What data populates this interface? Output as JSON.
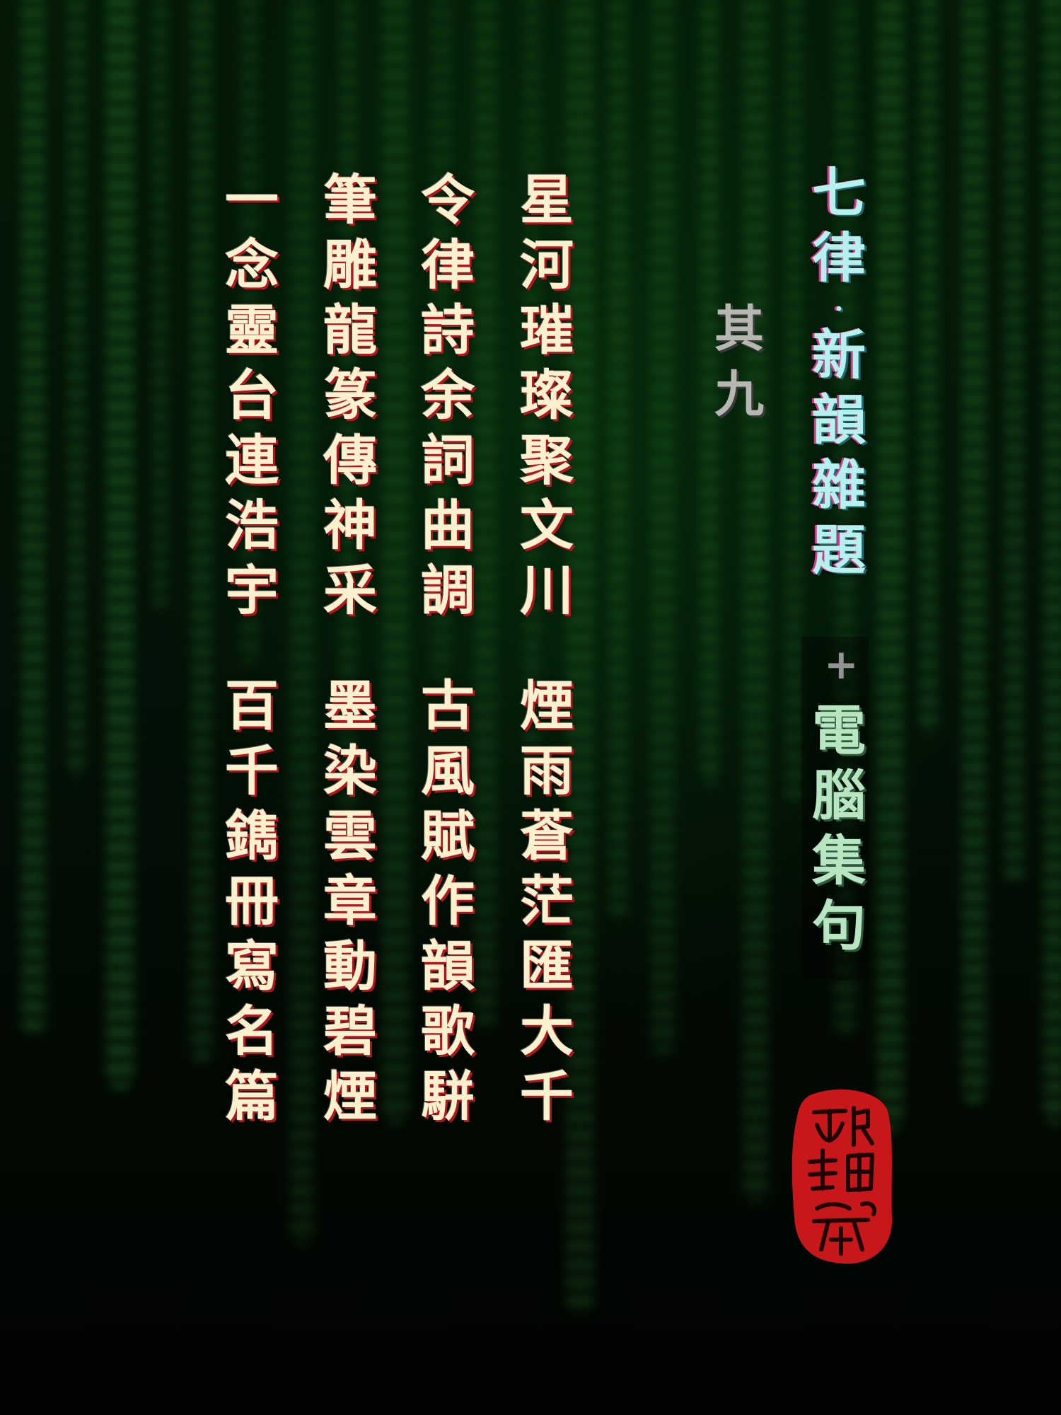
{
  "title": {
    "part1": [
      "七",
      "律",
      "·",
      "新",
      "韻",
      "雜",
      "題"
    ],
    "joiner": "+",
    "part2": [
      "電",
      "腦",
      "集",
      "句"
    ]
  },
  "subtitle": [
    "其",
    "九"
  ],
  "poem": {
    "lines": [
      {
        "first": [
          "星",
          "河",
          "璀",
          "璨",
          "聚",
          "文",
          "川"
        ],
        "second": [
          "煙",
          "雨",
          "蒼",
          "茫",
          "匯",
          "大",
          "千"
        ]
      },
      {
        "first": [
          "令",
          "律",
          "詩",
          "余",
          "詞",
          "曲",
          "調"
        ],
        "second": [
          "古",
          "風",
          "賦",
          "作",
          "韻",
          "歌",
          "駢"
        ]
      },
      {
        "first": [
          "筆",
          "雕",
          "龍",
          "篆",
          "傳",
          "神",
          "采"
        ],
        "second": [
          "墨",
          "染",
          "雲",
          "章",
          "動",
          "碧",
          "煙"
        ]
      },
      {
        "first": [
          "一",
          "念",
          "靈",
          "台",
          "連",
          "浩",
          "宇"
        ],
        "second": [
          "百",
          "千",
          "鐫",
          "冊",
          "寫",
          "名",
          "篇"
        ]
      }
    ]
  },
  "colors": {
    "poem_text": "#fbf1cf",
    "poem_shadow": "#b0161b",
    "title_text": "#b6f1ee",
    "title_shadow": "#d33a8a",
    "title2_text": "#b8e6c3",
    "subtitle_text": "#b7b7b2",
    "seal_red": "#c8171a",
    "background": "#031206",
    "rain_green": "#46c850"
  },
  "seal": {
    "style": "red-seal-stamp"
  }
}
